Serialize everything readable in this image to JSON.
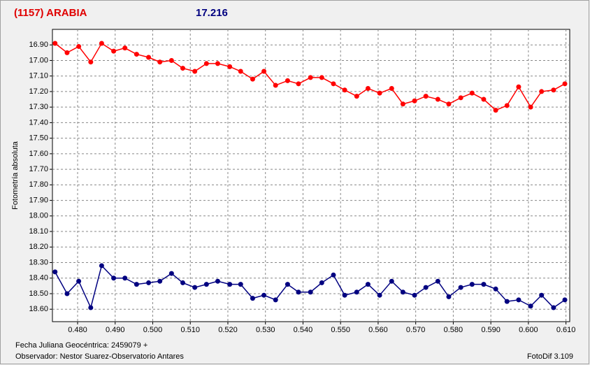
{
  "chart_data": {
    "type": "line",
    "title": "(1157) ARABIA",
    "subtitle": "17.216",
    "y_label": "Fotometría absoluta",
    "x_label": "Fecha Juliana Geocéntrica: 2459079 +",
    "observer": "Observador: Nestor Suarez-Observatorio Antares",
    "software": "FotoDif 3.109",
    "grid": true,
    "x": [
      0.474,
      0.4772,
      0.4803,
      0.4835,
      0.4864,
      0.4896,
      0.4926,
      0.4957,
      0.4989,
      0.5019,
      0.505,
      0.508,
      0.5112,
      0.5143,
      0.5173,
      0.5205,
      0.5234,
      0.5266,
      0.5296,
      0.5327,
      0.5359,
      0.5388,
      0.542,
      0.545,
      0.5481,
      0.5511,
      0.5543,
      0.5573,
      0.5604,
      0.5636,
      0.5666,
      0.5697,
      0.5727,
      0.5759,
      0.5788,
      0.582,
      0.585,
      0.5881,
      0.5913,
      0.5943,
      0.5974,
      0.6006,
      0.6035,
      0.6067,
      0.6097
    ],
    "series": [
      {
        "color": "#ff0000",
        "values": [
          16.89,
          16.95,
          16.91,
          17.01,
          16.89,
          16.94,
          16.92,
          16.96,
          16.98,
          17.01,
          17.0,
          17.05,
          17.07,
          17.02,
          17.02,
          17.04,
          17.07,
          17.12,
          17.07,
          17.16,
          17.13,
          17.15,
          17.11,
          17.11,
          17.15,
          17.19,
          17.23,
          17.18,
          17.21,
          17.18,
          17.28,
          17.26,
          17.23,
          17.25,
          17.28,
          17.24,
          17.21,
          17.25,
          17.32,
          17.29,
          17.17,
          17.3,
          17.2,
          17.19,
          17.15
        ]
      },
      {
        "color": "#000080",
        "values": [
          18.36,
          18.5,
          18.42,
          18.59,
          18.32,
          18.4,
          18.4,
          18.44,
          18.43,
          18.42,
          18.37,
          18.43,
          18.46,
          18.44,
          18.42,
          18.44,
          18.44,
          18.53,
          18.51,
          18.54,
          18.44,
          18.49,
          18.49,
          18.43,
          18.38,
          18.51,
          18.49,
          18.44,
          18.51,
          18.42,
          18.49,
          18.51,
          18.46,
          18.42,
          18.52,
          18.46,
          18.44,
          18.44,
          18.47,
          18.55,
          18.54,
          18.58,
          18.51,
          18.59,
          18.54
        ]
      }
    ],
    "xlim": [
      0.4733,
      0.611
    ],
    "xticks": [
      {
        "value": 0.48,
        "label": "0.480"
      },
      {
        "value": 0.49,
        "label": "0.490"
      },
      {
        "value": 0.5,
        "label": "0.500"
      },
      {
        "value": 0.51,
        "label": "0.510"
      },
      {
        "value": 0.52,
        "label": "0.520"
      },
      {
        "value": 0.53,
        "label": "0.530"
      },
      {
        "value": 0.54,
        "label": "0.540"
      },
      {
        "value": 0.55,
        "label": "0.550"
      },
      {
        "value": 0.56,
        "label": "0.560"
      },
      {
        "value": 0.57,
        "label": "0.570"
      },
      {
        "value": 0.58,
        "label": "0.580"
      },
      {
        "value": 0.59,
        "label": "0.590"
      },
      {
        "value": 0.6,
        "label": "0.600"
      },
      {
        "value": 0.61,
        "label": "0.610"
      }
    ],
    "ylim": [
      18.68,
      16.8
    ],
    "yticks": [
      {
        "value": 16.9,
        "label": "16.90"
      },
      {
        "value": 17.0,
        "label": "17.00"
      },
      {
        "value": 17.1,
        "label": "17.10"
      },
      {
        "value": 17.2,
        "label": "17.20"
      },
      {
        "value": 17.3,
        "label": "17.30"
      },
      {
        "value": 17.4,
        "label": "17.40"
      },
      {
        "value": 17.5,
        "label": "17.50"
      },
      {
        "value": 17.6,
        "label": "17.60"
      },
      {
        "value": 17.7,
        "label": "17.70"
      },
      {
        "value": 17.8,
        "label": "17.80"
      },
      {
        "value": 17.9,
        "label": "17.90"
      },
      {
        "value": 18.0,
        "label": "18.00"
      },
      {
        "value": 18.1,
        "label": "18.10"
      },
      {
        "value": 18.2,
        "label": "18.20"
      },
      {
        "value": 18.3,
        "label": "18.30"
      },
      {
        "value": 18.4,
        "label": "18.40"
      },
      {
        "value": 18.5,
        "label": "18.50"
      },
      {
        "value": 18.6,
        "label": "18.60"
      }
    ]
  }
}
